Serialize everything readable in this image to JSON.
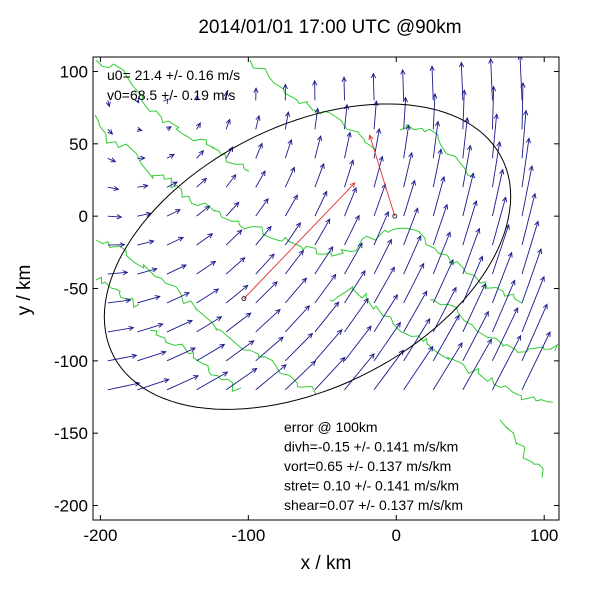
{
  "chart_data": {
    "type": "quiver",
    "title": "2014/01/01 17:00 UTC @90km",
    "xlabel": "x / km",
    "ylabel": "y / km",
    "xlim": [
      -205,
      110
    ],
    "ylim": [
      -210,
      110
    ],
    "xticks": [
      -200,
      -100,
      0,
      100
    ],
    "yticks": [
      100,
      50,
      0,
      -50,
      -100,
      -150,
      -200
    ],
    "tick_labels_x": [
      "-200",
      "-100",
      "0",
      "100"
    ],
    "tick_labels_y": [
      "100",
      "50",
      "0",
      "-50",
      "-100",
      "-150",
      "-200"
    ],
    "annotations_top_left": [
      "u0= 21.4 +/- 0.16 m/s",
      "v0=68.5 +/- 0.19 m/s"
    ],
    "annotations_bottom_right": [
      "error @ 100km",
      "divh=-0.15 +/- 0.141 m/s/km",
      "vort=0.65 +/- 0.137 m/s/km",
      "stret= 0.10 +/- 0.141 m/s/km",
      "shear=0.07 +/- 0.137 m/s/km"
    ],
    "wind_field": {
      "u0": 21.4,
      "v0": 68.5,
      "divh": -0.15,
      "vort": 0.65,
      "stret": 0.1,
      "shear": 0.07,
      "grid_x_range": [
        -195,
        85
      ],
      "grid_y_range": [
        -120,
        85
      ],
      "grid_step": 20
    },
    "ellipse": {
      "center": [
        -60,
        -28
      ],
      "semi_axes": [
        148,
        90
      ],
      "angle_deg": 28
    },
    "red_vectors": [
      {
        "from": [
          -103,
          -57
        ],
        "to": [
          -28,
          23
        ]
      },
      {
        "from": [
          -1,
          0
        ],
        "to": [
          -18,
          56
        ]
      }
    ],
    "colors": {
      "arrows": "#1a1a8c",
      "red_vectors": "#e03030",
      "coastline": "#33cc33",
      "ellipse": "#000000",
      "axes": "#000000"
    }
  }
}
